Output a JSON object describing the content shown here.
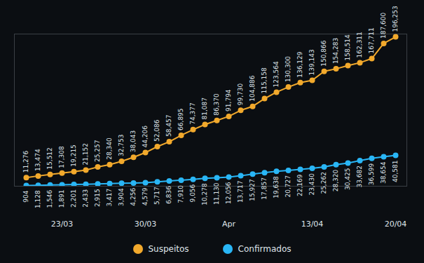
{
  "chart_data": {
    "type": "line",
    "categories": [
      null,
      null,
      null,
      "23/03",
      null,
      null,
      null,
      null,
      null,
      null,
      "30/03",
      null,
      null,
      null,
      null,
      null,
      null,
      "Apr",
      null,
      null,
      null,
      null,
      null,
      null,
      "13/04",
      null,
      null,
      null,
      null,
      null,
      null,
      "20/04"
    ],
    "series": [
      {
        "name": "Suspeitos",
        "color": "#f2a92c",
        "values": [
          11276,
          13474,
          15512,
          17308,
          19215,
          21152,
          25257,
          28340,
          32753,
          38043,
          44206,
          52086,
          58457,
          66895,
          74377,
          81087,
          86370,
          91794,
          99730,
          104886,
          115158,
          123564,
          130300,
          136129,
          139143,
          150866,
          154283,
          158514,
          162311,
          167711,
          187600,
          196253
        ],
        "value_labels": [
          "11,276",
          "13,474",
          "15,512",
          "17,308",
          "19,215",
          "21,152",
          "25,257",
          "28,340",
          "32,753",
          "38,043",
          "44,206",
          "52,086",
          "58,457",
          "66,895",
          "74,377",
          "81,087",
          "86,370",
          "91,794",
          "99,730",
          "104,886",
          "115,158",
          "123,564",
          "130,300",
          "136,129",
          "139,143",
          "150,866",
          "154,283",
          "158,514",
          "162,311",
          "167,711",
          "187,600",
          "196,253"
        ]
      },
      {
        "name": "Confirmados",
        "color": "#29b6f6",
        "values": [
          904,
          1128,
          1546,
          1891,
          2201,
          2433,
          2915,
          3417,
          3904,
          4256,
          4579,
          5717,
          6836,
          7910,
          9056,
          10278,
          11130,
          12056,
          13717,
          15927,
          17857,
          19638,
          20727,
          22169,
          23430,
          25262,
          28320,
          30425,
          33682,
          36599,
          38654,
          40581
        ],
        "value_labels": [
          "904",
          "1,128",
          "1,546",
          "1,891",
          "2,201",
          "2,433",
          "2,915",
          "3,417",
          "3,904",
          "4,256",
          "4,579",
          "5,717",
          "6,836",
          "7,910",
          "9,056",
          "10,278",
          "11,130",
          "12,056",
          "13,717",
          "15,927",
          "17,857",
          "19,638",
          "20,727",
          "22,169",
          "23,430",
          "25,262",
          "28,320",
          "30,425",
          "33,682",
          "36,599",
          "38,654",
          "40,581"
        ]
      }
    ],
    "ylim": [
      0,
      200000
    ],
    "tick_labels": "x",
    "data_labels": true,
    "marker": "circle",
    "legend": "bottom"
  }
}
